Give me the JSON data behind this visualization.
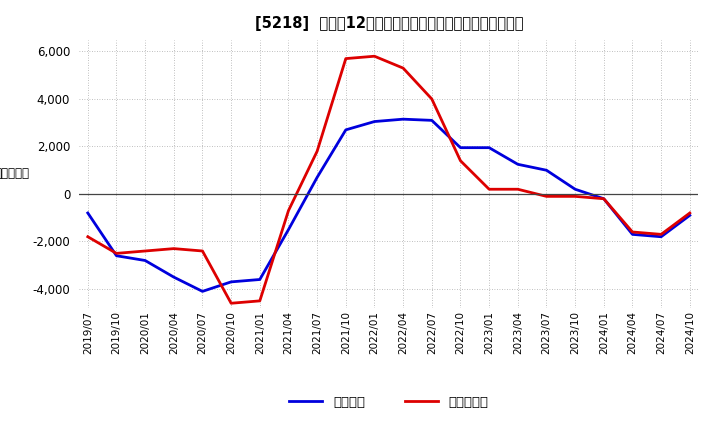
{
  "title": "[5218]  利益の12か月移動合計の対前年同期増減額の推移",
  "ylim": [
    -4800,
    6500
  ],
  "yticks": [
    -4000,
    -2000,
    0,
    2000,
    4000,
    6000
  ],
  "bg_color": "#ffffff",
  "plot_bg_color": "#ffffff",
  "grid_color": "#aaaaaa",
  "line_color_blue": "#0000dd",
  "line_color_red": "#dd0000",
  "legend_blue": "経常利益",
  "legend_red": "当期純利益",
  "x_labels": [
    "2019/07",
    "2019/10",
    "2020/01",
    "2020/04",
    "2020/07",
    "2020/10",
    "2021/01",
    "2021/04",
    "2021/07",
    "2021/10",
    "2022/01",
    "2022/04",
    "2022/07",
    "2022/10",
    "2023/01",
    "2023/04",
    "2023/07",
    "2023/10",
    "2024/01",
    "2024/04",
    "2024/07",
    "2024/10"
  ],
  "blue_values": [
    -800,
    -2600,
    -2800,
    -3500,
    -4100,
    -3700,
    -3600,
    -1500,
    700,
    2700,
    3050,
    3150,
    3100,
    1950,
    1950,
    1250,
    1000,
    200,
    -200,
    -1700,
    -1800,
    -900
  ],
  "red_values": [
    -1800,
    -2500,
    -2400,
    -2300,
    -2400,
    -4600,
    -4500,
    -700,
    1800,
    5700,
    5800,
    5300,
    4000,
    1400,
    200,
    200,
    -100,
    -100,
    -200,
    -1600,
    -1700,
    -800
  ]
}
